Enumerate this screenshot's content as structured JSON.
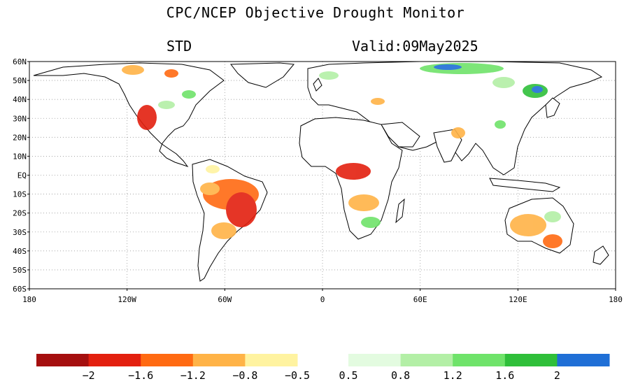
{
  "title": "CPC/NCEP Objective Drought Monitor",
  "subtitle_left": "STD",
  "subtitle_right": "Valid:09May2025",
  "lat_labels": [
    "60N",
    "50N",
    "40N",
    "30N",
    "20N",
    "10N",
    "EQ",
    "10S",
    "20S",
    "30S",
    "40S",
    "50S",
    "60S"
  ],
  "lon_labels": [
    "180",
    "120W",
    "60W",
    "0",
    "60E",
    "120E",
    "180"
  ],
  "colorbar": {
    "dry_colors": [
      "#a50f0f",
      "#e3200f",
      "#ff6a12",
      "#ffb347",
      "#fff3a0"
    ],
    "wet_colors": [
      "#e3fbe0",
      "#b3efa6",
      "#6fe36a",
      "#2fbf3a",
      "#1f6fd6"
    ],
    "labels": [
      "−2",
      "−1.6",
      "−1.2",
      "−0.8",
      "−0.5",
      "0.5",
      "0.8",
      "1.2",
      "1.6",
      "2"
    ]
  },
  "colors": {
    "land": "#ffffff",
    "border": "#000000",
    "grid": "#9a9a9a"
  }
}
